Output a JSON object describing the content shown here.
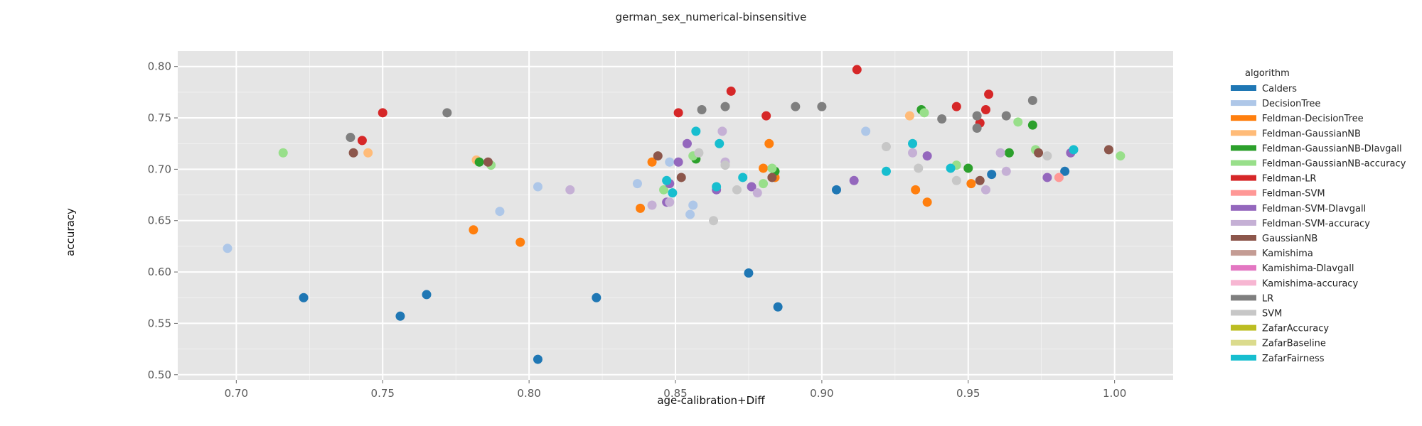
{
  "colors": {
    "panel": "#e5e5e5",
    "grid": "#ffffff"
  },
  "chart_data": {
    "type": "scatter",
    "title": "german_sex_numerical-binsensitive",
    "xlabel": "age-calibration+Diff",
    "ylabel": "accuracy",
    "xlim": [
      0.68,
      1.02
    ],
    "ylim": [
      0.495,
      0.815
    ],
    "x_ticks": [
      "0.70",
      "0.75",
      "0.80",
      "0.85",
      "0.90",
      "0.95",
      "1.00"
    ],
    "y_ticks": [
      "0.50",
      "0.55",
      "0.60",
      "0.65",
      "0.70",
      "0.75",
      "0.80"
    ],
    "grid": true,
    "legend_placement": "right",
    "legend_title": "algorithm",
    "series": [
      {
        "name": "Calders",
        "color": "#1f77b4",
        "points": [
          [
            0.723,
            0.575
          ],
          [
            0.756,
            0.557
          ],
          [
            0.765,
            0.578
          ],
          [
            0.803,
            0.515
          ],
          [
            0.823,
            0.575
          ],
          [
            0.875,
            0.599
          ],
          [
            0.885,
            0.566
          ],
          [
            0.905,
            0.68
          ],
          [
            0.958,
            0.695
          ],
          [
            0.983,
            0.698
          ]
        ]
      },
      {
        "name": "DecisionTree",
        "color": "#aec7e8",
        "points": [
          [
            0.697,
            0.623
          ],
          [
            0.79,
            0.659
          ],
          [
            0.803,
            0.683
          ],
          [
            0.837,
            0.686
          ],
          [
            0.848,
            0.707
          ],
          [
            0.855,
            0.656
          ],
          [
            0.856,
            0.665
          ],
          [
            0.915,
            0.737
          ]
        ]
      },
      {
        "name": "Feldman-DecisionTree",
        "color": "#ff7f0e",
        "points": [
          [
            0.781,
            0.641
          ],
          [
            0.797,
            0.629
          ],
          [
            0.838,
            0.662
          ],
          [
            0.842,
            0.707
          ],
          [
            0.88,
            0.701
          ],
          [
            0.882,
            0.725
          ],
          [
            0.884,
            0.692
          ],
          [
            0.932,
            0.68
          ],
          [
            0.936,
            0.668
          ],
          [
            0.951,
            0.686
          ]
        ]
      },
      {
        "name": "Feldman-GaussianNB",
        "color": "#ffbb78",
        "points": [
          [
            0.745,
            0.716
          ],
          [
            0.782,
            0.709
          ],
          [
            0.93,
            0.752
          ]
        ]
      },
      {
        "name": "Feldman-GaussianNB-DIavgall",
        "color": "#2ca02c",
        "points": [
          [
            0.783,
            0.707
          ],
          [
            0.857,
            0.71
          ],
          [
            0.884,
            0.698
          ],
          [
            0.934,
            0.758
          ],
          [
            0.95,
            0.701
          ],
          [
            0.964,
            0.716
          ],
          [
            0.972,
            0.743
          ]
        ]
      },
      {
        "name": "Feldman-GaussianNB-accuracy",
        "color": "#98df8a",
        "points": [
          [
            0.716,
            0.716
          ],
          [
            0.787,
            0.704
          ],
          [
            0.846,
            0.68
          ],
          [
            0.856,
            0.713
          ],
          [
            0.88,
            0.686
          ],
          [
            0.883,
            0.701
          ],
          [
            0.935,
            0.755
          ],
          [
            0.946,
            0.704
          ],
          [
            0.967,
            0.746
          ],
          [
            0.973,
            0.719
          ],
          [
            1.002,
            0.713
          ]
        ]
      },
      {
        "name": "Feldman-LR",
        "color": "#d62728",
        "points": [
          [
            0.743,
            0.728
          ],
          [
            0.75,
            0.755
          ],
          [
            0.851,
            0.755
          ],
          [
            0.869,
            0.776
          ],
          [
            0.881,
            0.752
          ],
          [
            0.912,
            0.797
          ],
          [
            0.946,
            0.761
          ],
          [
            0.954,
            0.745
          ],
          [
            0.956,
            0.758
          ],
          [
            0.957,
            0.773
          ]
        ]
      },
      {
        "name": "Feldman-SVM",
        "color": "#ff9896",
        "points": [
          [
            0.981,
            0.692
          ]
        ]
      },
      {
        "name": "Feldman-SVM-DIavgall",
        "color": "#9467bd",
        "points": [
          [
            0.847,
            0.668
          ],
          [
            0.848,
            0.686
          ],
          [
            0.851,
            0.707
          ],
          [
            0.854,
            0.725
          ],
          [
            0.864,
            0.68
          ],
          [
            0.876,
            0.683
          ],
          [
            0.911,
            0.689
          ],
          [
            0.936,
            0.713
          ],
          [
            0.977,
            0.692
          ],
          [
            0.985,
            0.716
          ]
        ]
      },
      {
        "name": "Feldman-SVM-accuracy",
        "color": "#c5b0d5",
        "points": [
          [
            0.814,
            0.68
          ],
          [
            0.842,
            0.665
          ],
          [
            0.848,
            0.668
          ],
          [
            0.866,
            0.737
          ],
          [
            0.867,
            0.707
          ],
          [
            0.878,
            0.677
          ],
          [
            0.931,
            0.716
          ],
          [
            0.956,
            0.68
          ],
          [
            0.961,
            0.716
          ],
          [
            0.963,
            0.698
          ]
        ]
      },
      {
        "name": "GaussianNB",
        "color": "#8c564b",
        "points": [
          [
            0.74,
            0.716
          ],
          [
            0.786,
            0.707
          ],
          [
            0.844,
            0.713
          ],
          [
            0.852,
            0.692
          ],
          [
            0.883,
            0.692
          ],
          [
            0.954,
            0.689
          ],
          [
            0.974,
            0.716
          ],
          [
            0.998,
            0.719
          ]
        ]
      },
      {
        "name": "LR",
        "color": "#7f7f7f",
        "points": [
          [
            0.739,
            0.731
          ],
          [
            0.772,
            0.755
          ],
          [
            0.859,
            0.758
          ],
          [
            0.867,
            0.761
          ],
          [
            0.891,
            0.761
          ],
          [
            0.9,
            0.761
          ],
          [
            0.941,
            0.749
          ],
          [
            0.953,
            0.74
          ],
          [
            0.953,
            0.752
          ],
          [
            0.963,
            0.752
          ],
          [
            0.972,
            0.767
          ]
        ]
      },
      {
        "name": "SVM",
        "color": "#c7c7c7",
        "points": [
          [
            0.858,
            0.716
          ],
          [
            0.863,
            0.65
          ],
          [
            0.867,
            0.704
          ],
          [
            0.871,
            0.68
          ],
          [
            0.922,
            0.722
          ],
          [
            0.933,
            0.701
          ],
          [
            0.946,
            0.689
          ],
          [
            0.977,
            0.713
          ]
        ]
      },
      {
        "name": "ZafarFairness",
        "color": "#17becf",
        "points": [
          [
            0.847,
            0.689
          ],
          [
            0.849,
            0.677
          ],
          [
            0.857,
            0.737
          ],
          [
            0.864,
            0.683
          ],
          [
            0.865,
            0.725
          ],
          [
            0.873,
            0.692
          ],
          [
            0.922,
            0.698
          ],
          [
            0.931,
            0.725
          ],
          [
            0.944,
            0.701
          ],
          [
            0.986,
            0.719
          ]
        ]
      }
    ],
    "legend_entries": [
      {
        "name": "Calders",
        "color": "#1f77b4"
      },
      {
        "name": "DecisionTree",
        "color": "#aec7e8"
      },
      {
        "name": "Feldman-DecisionTree",
        "color": "#ff7f0e"
      },
      {
        "name": "Feldman-GaussianNB",
        "color": "#ffbb78"
      },
      {
        "name": "Feldman-GaussianNB-DIavgall",
        "color": "#2ca02c"
      },
      {
        "name": "Feldman-GaussianNB-accuracy",
        "color": "#98df8a"
      },
      {
        "name": "Feldman-LR",
        "color": "#d62728"
      },
      {
        "name": "Feldman-SVM",
        "color": "#ff9896"
      },
      {
        "name": "Feldman-SVM-DIavgall",
        "color": "#9467bd"
      },
      {
        "name": "Feldman-SVM-accuracy",
        "color": "#c5b0d5"
      },
      {
        "name": "GaussianNB",
        "color": "#8c564b"
      },
      {
        "name": "Kamishima",
        "color": "#c49c94"
      },
      {
        "name": "Kamishima-DIavgall",
        "color": "#e377c2"
      },
      {
        "name": "Kamishima-accuracy",
        "color": "#f7b6d2"
      },
      {
        "name": "LR",
        "color": "#7f7f7f"
      },
      {
        "name": "SVM",
        "color": "#c7c7c7"
      },
      {
        "name": "ZafarAccuracy",
        "color": "#bcbd22"
      },
      {
        "name": "ZafarBaseline",
        "color": "#dbdb8d"
      },
      {
        "name": "ZafarFairness",
        "color": "#17becf"
      }
    ]
  }
}
